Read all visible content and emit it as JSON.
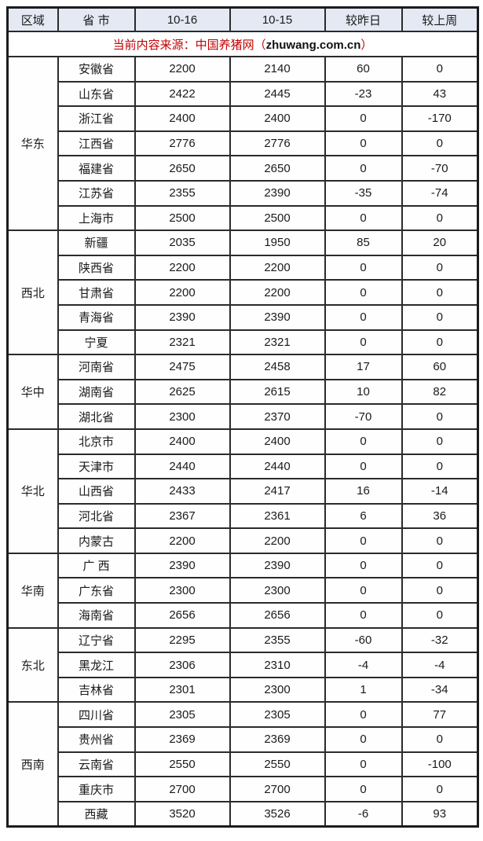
{
  "table": {
    "headers": [
      "区域",
      "省 市",
      "10-16",
      "10-15",
      "较昨日",
      "较上周"
    ],
    "source_note": {
      "prefix": "当前内容来源：中国养猪网（",
      "domain": "zhuwang.com.cn",
      "suffix": "）"
    },
    "regions": [
      {
        "name": "华东",
        "rows": [
          {
            "province": "安徽省",
            "d1016": 2200,
            "d1015": 2140,
            "vs_yesterday": 60,
            "vs_last_week": 0
          },
          {
            "province": "山东省",
            "d1016": 2422,
            "d1015": 2445,
            "vs_yesterday": -23,
            "vs_last_week": 43
          },
          {
            "province": "浙江省",
            "d1016": 2400,
            "d1015": 2400,
            "vs_yesterday": 0,
            "vs_last_week": -170
          },
          {
            "province": "江西省",
            "d1016": 2776,
            "d1015": 2776,
            "vs_yesterday": 0,
            "vs_last_week": 0
          },
          {
            "province": "福建省",
            "d1016": 2650,
            "d1015": 2650,
            "vs_yesterday": 0,
            "vs_last_week": -70
          },
          {
            "province": "江苏省",
            "d1016": 2355,
            "d1015": 2390,
            "vs_yesterday": -35,
            "vs_last_week": -74
          },
          {
            "province": "上海市",
            "d1016": 2500,
            "d1015": 2500,
            "vs_yesterday": 0,
            "vs_last_week": 0
          }
        ]
      },
      {
        "name": "西北",
        "rows": [
          {
            "province": "新疆",
            "d1016": 2035,
            "d1015": 1950,
            "vs_yesterday": 85,
            "vs_last_week": 20
          },
          {
            "province": "陕西省",
            "d1016": 2200,
            "d1015": 2200,
            "vs_yesterday": 0,
            "vs_last_week": 0
          },
          {
            "province": "甘肃省",
            "d1016": 2200,
            "d1015": 2200,
            "vs_yesterday": 0,
            "vs_last_week": 0
          },
          {
            "province": "青海省",
            "d1016": 2390,
            "d1015": 2390,
            "vs_yesterday": 0,
            "vs_last_week": 0
          },
          {
            "province": "宁夏",
            "d1016": 2321,
            "d1015": 2321,
            "vs_yesterday": 0,
            "vs_last_week": 0
          }
        ]
      },
      {
        "name": "华中",
        "rows": [
          {
            "province": "河南省",
            "d1016": 2475,
            "d1015": 2458,
            "vs_yesterday": 17,
            "vs_last_week": 60
          },
          {
            "province": "湖南省",
            "d1016": 2625,
            "d1015": 2615,
            "vs_yesterday": 10,
            "vs_last_week": 82
          },
          {
            "province": "湖北省",
            "d1016": 2300,
            "d1015": 2370,
            "vs_yesterday": -70,
            "vs_last_week": 0
          }
        ]
      },
      {
        "name": "华北",
        "rows": [
          {
            "province": "北京市",
            "d1016": 2400,
            "d1015": 2400,
            "vs_yesterday": 0,
            "vs_last_week": 0
          },
          {
            "province": "天津市",
            "d1016": 2440,
            "d1015": 2440,
            "vs_yesterday": 0,
            "vs_last_week": 0
          },
          {
            "province": "山西省",
            "d1016": 2433,
            "d1015": 2417,
            "vs_yesterday": 16,
            "vs_last_week": -14
          },
          {
            "province": "河北省",
            "d1016": 2367,
            "d1015": 2361,
            "vs_yesterday": 6,
            "vs_last_week": 36
          },
          {
            "province": "内蒙古",
            "d1016": 2200,
            "d1015": 2200,
            "vs_yesterday": 0,
            "vs_last_week": 0
          }
        ]
      },
      {
        "name": "华南",
        "rows": [
          {
            "province": "广 西",
            "d1016": 2390,
            "d1015": 2390,
            "vs_yesterday": 0,
            "vs_last_week": 0
          },
          {
            "province": "广东省",
            "d1016": 2300,
            "d1015": 2300,
            "vs_yesterday": 0,
            "vs_last_week": 0
          },
          {
            "province": "海南省",
            "d1016": 2656,
            "d1015": 2656,
            "vs_yesterday": 0,
            "vs_last_week": 0
          }
        ]
      },
      {
        "name": "东北",
        "rows": [
          {
            "province": "辽宁省",
            "d1016": 2295,
            "d1015": 2355,
            "vs_yesterday": -60,
            "vs_last_week": -32
          },
          {
            "province": "黑龙江",
            "d1016": 2306,
            "d1015": 2310,
            "vs_yesterday": -4,
            "vs_last_week": -4
          },
          {
            "province": "吉林省",
            "d1016": 2301,
            "d1015": 2300,
            "vs_yesterday": 1,
            "vs_last_week": -34
          }
        ]
      },
      {
        "name": "西南",
        "rows": [
          {
            "province": "四川省",
            "d1016": 2305,
            "d1015": 2305,
            "vs_yesterday": 0,
            "vs_last_week": 77
          },
          {
            "province": "贵州省",
            "d1016": 2369,
            "d1015": 2369,
            "vs_yesterday": 0,
            "vs_last_week": 0
          },
          {
            "province": "云南省",
            "d1016": 2550,
            "d1015": 2550,
            "vs_yesterday": 0,
            "vs_last_week": -100
          },
          {
            "province": "重庆市",
            "d1016": 2700,
            "d1015": 2700,
            "vs_yesterday": 0,
            "vs_last_week": 0
          },
          {
            "province": "西藏",
            "d1016": 3520,
            "d1015": 3526,
            "vs_yesterday": -6,
            "vs_last_week": 93
          }
        ]
      }
    ]
  },
  "colors": {
    "increase": "#ff1f1f",
    "decrease": "#00a63c",
    "neutral_text": "#1a1a1a",
    "header_background": "#e4e9f3",
    "source_note_red": "#c00000",
    "border": "#2b2b2b"
  }
}
